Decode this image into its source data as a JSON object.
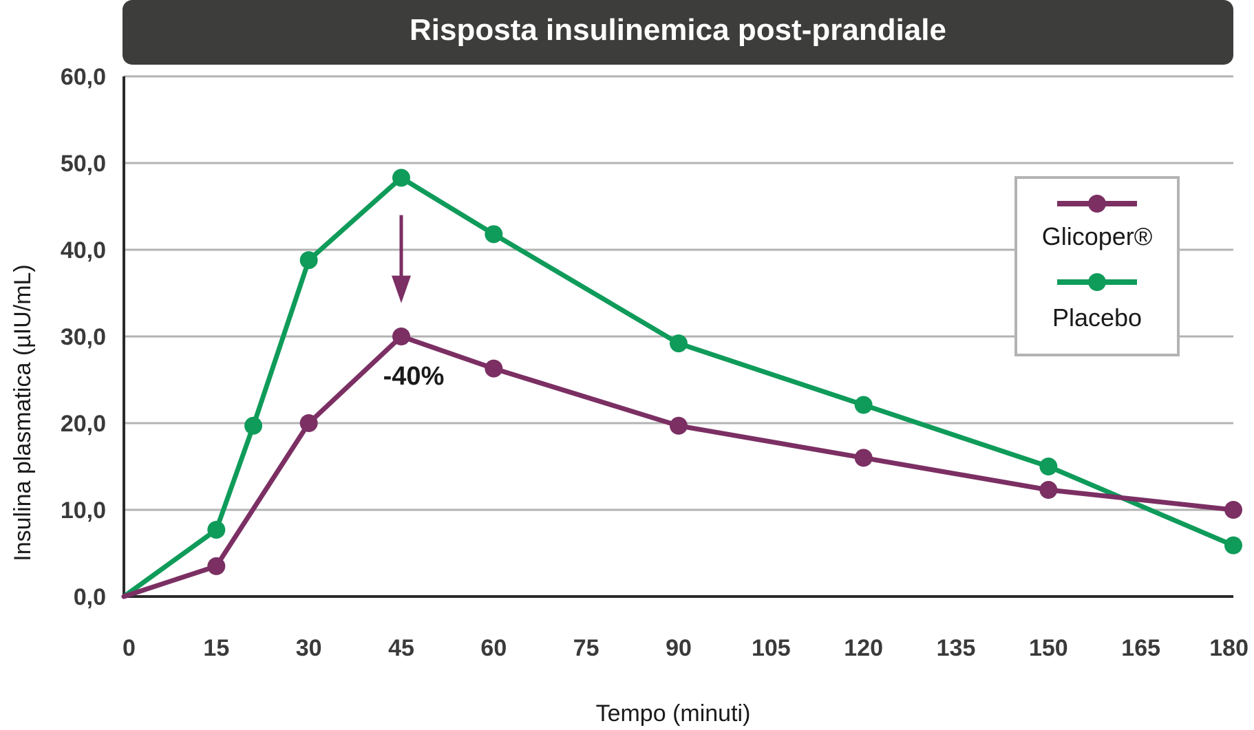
{
  "chart_data": {
    "type": "line",
    "title": "Risposta insulinemica post-prandiale",
    "xlabel": "Tempo (minuti)",
    "ylabel": "Insulina plasmatica (µIU/mL)",
    "xlim": [
      0,
      180
    ],
    "ylim": [
      0,
      60
    ],
    "x_ticks": [
      0,
      15,
      30,
      45,
      60,
      75,
      90,
      105,
      120,
      135,
      150,
      165,
      180
    ],
    "y_ticks": [
      "0,0",
      "10,0",
      "20,0",
      "30,0",
      "40,0",
      "50,0",
      "60,0"
    ],
    "y_tick_values": [
      0,
      10,
      20,
      30,
      40,
      50,
      60
    ],
    "grid": true,
    "legend_position": "top-right",
    "series": [
      {
        "name": "Glicoper®",
        "color": "#7b2f63",
        "x": [
          0,
          15,
          30,
          45,
          60,
          90,
          120,
          150,
          180
        ],
        "y": [
          0,
          3.5,
          20,
          30,
          26.3,
          19.7,
          16,
          12.3,
          10
        ]
      },
      {
        "name": "Placebo",
        "color": "#0f9b5a",
        "x": [
          0,
          15,
          21,
          30,
          45,
          60,
          90,
          120,
          150,
          180
        ],
        "y": [
          0,
          7.7,
          19.7,
          38.8,
          48.3,
          41.8,
          29.2,
          22.1,
          15,
          5.9
        ]
      }
    ],
    "annotations": [
      {
        "text": "-40%",
        "x": 45,
        "arrow_from_y": 44,
        "arrow_to_y": 34
      }
    ],
    "colors": {
      "title_bar": "#3d3d3b",
      "grid": "#b3b3b3",
      "axis": "#2a2a2a"
    }
  }
}
